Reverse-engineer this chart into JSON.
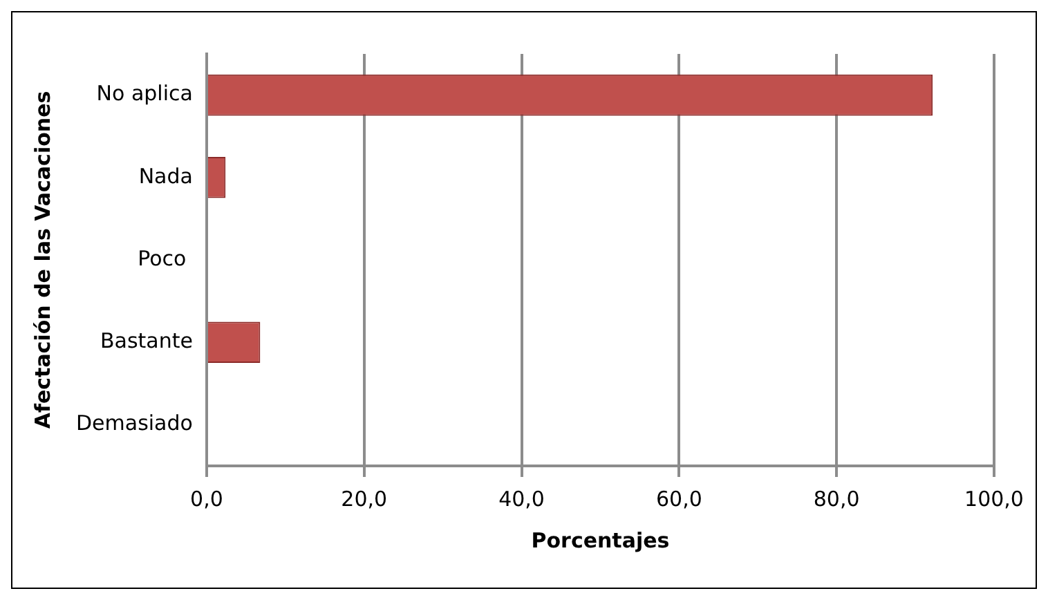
{
  "chart_data": {
    "type": "bar",
    "orientation": "horizontal",
    "xlabel": "Porcentajes",
    "ylabel": "Afectación de las Vacaciones",
    "categories": [
      "No aplica",
      "Nada",
      "Poco ",
      "Bastante",
      "Demasiado"
    ],
    "series": [
      {
        "color": "#c0504d",
        "values": [
          92.2,
          2.4,
          0,
          6.8,
          0
        ]
      }
    ],
    "xlim": [
      0,
      100
    ],
    "xticks": [
      {
        "value": 0,
        "label": "0,0"
      },
      {
        "value": 20,
        "label": "20,0"
      },
      {
        "value": 40,
        "label": "40,0"
      },
      {
        "value": 60,
        "label": "60,0"
      },
      {
        "value": 80,
        "label": "80,0"
      },
      {
        "value": 100,
        "label": "100,0"
      }
    ],
    "grid": "x",
    "legend": false
  }
}
